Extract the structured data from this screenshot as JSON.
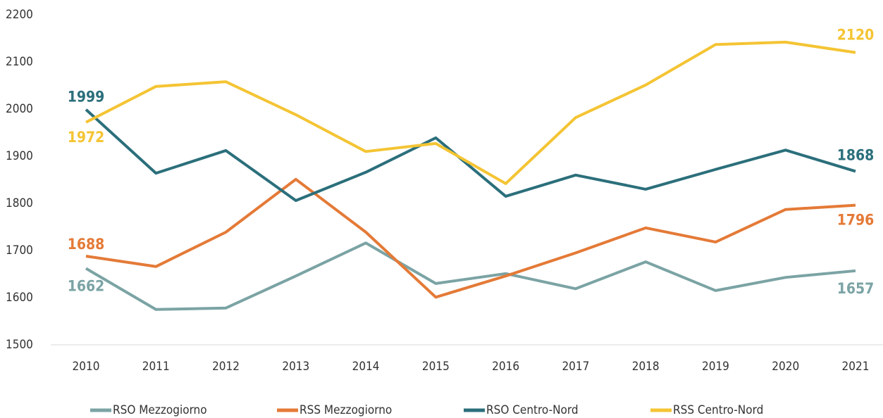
{
  "chart_data": {
    "type": "line",
    "categories": [
      "2010",
      "2011",
      "2012",
      "2013",
      "2014",
      "2015",
      "2016",
      "2017",
      "2018",
      "2019",
      "2020",
      "2021"
    ],
    "ylim": [
      1500,
      2200
    ],
    "yticks": [
      1500,
      1600,
      1700,
      1800,
      1900,
      2000,
      2100,
      2200
    ],
    "grid": false,
    "legend": "bottom",
    "series": [
      {
        "name": "RSO Mezzogiorno",
        "color": "#7ba3a4",
        "values": [
          1662,
          1575,
          1578,
          1646,
          1716,
          1630,
          1651,
          1619,
          1676,
          1615,
          1643,
          1657
        ]
      },
      {
        "name": "RSS Mezzogiorno",
        "color": "#e47a37",
        "values": [
          1688,
          1666,
          1739,
          1851,
          1739,
          1601,
          1646,
          1695,
          1748,
          1718,
          1787,
          1796
        ]
      },
      {
        "name": "RSO Centro-Nord",
        "color": "#2b6f7b",
        "values": [
          1999,
          1864,
          1912,
          1806,
          1866,
          1939,
          1815,
          1860,
          1830,
          1872,
          1913,
          1868
        ]
      },
      {
        "name": "RSS Centro-Nord",
        "color": "#f4c433",
        "values": [
          1972,
          2048,
          2058,
          1988,
          1910,
          1927,
          1842,
          1982,
          2051,
          2137,
          2142,
          2120
        ]
      }
    ]
  }
}
